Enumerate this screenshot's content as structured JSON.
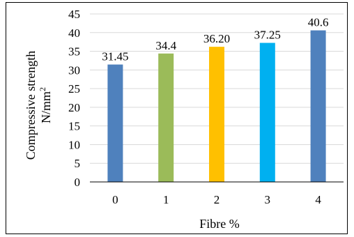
{
  "chart_data": {
    "type": "bar",
    "categories": [
      "0",
      "1",
      "2",
      "3",
      "4"
    ],
    "values": [
      31.45,
      34.4,
      36.2,
      37.25,
      40.6
    ],
    "data_labels": [
      "31.45",
      "34.4",
      "36.20",
      "37.25",
      "40.6"
    ],
    "bar_colors": [
      "#4f81bd",
      "#9bbb59",
      "#ffc000",
      "#00b0f0",
      "#4f81bd"
    ],
    "title": "",
    "xlabel": "Fibre %",
    "ylabel_line1": "Compressive strength",
    "ylabel_line2_base": "N/mm",
    "ylabel_line2_sup": "2",
    "ylim": [
      0,
      45
    ],
    "yticks": [
      0,
      5,
      10,
      15,
      20,
      25,
      30,
      35,
      40,
      45
    ],
    "grid": true,
    "legend": "none"
  }
}
